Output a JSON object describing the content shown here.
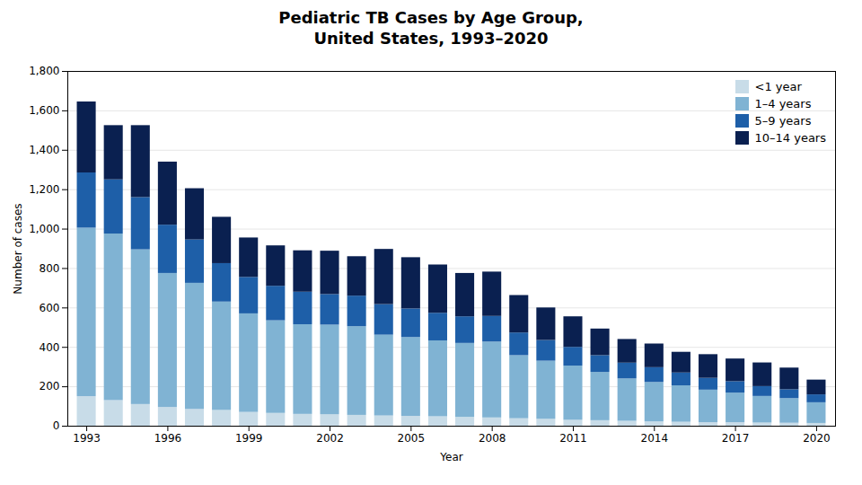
{
  "chart_data": {
    "type": "bar",
    "stacked": true,
    "title": "Pediatric TB Cases by Age Group,\nUnited States, 1993–2020",
    "xlabel": "Year",
    "ylabel": "Number of cases",
    "x": [
      1993,
      1994,
      1995,
      1996,
      1997,
      1998,
      1999,
      2000,
      2001,
      2002,
      2003,
      2004,
      2005,
      2006,
      2007,
      2008,
      2009,
      2010,
      2011,
      2012,
      2013,
      2014,
      2015,
      2016,
      2017,
      2018,
      2019,
      2020
    ],
    "series": [
      {
        "name": "<1 year",
        "color": "#c8dce8",
        "values": [
          150,
          130,
          110,
          95,
          85,
          80,
          70,
          65,
          60,
          58,
          55,
          52,
          50,
          48,
          45,
          42,
          38,
          35,
          30,
          28,
          25,
          22,
          20,
          18,
          18,
          16,
          15,
          14
        ]
      },
      {
        "name": "1–4 years",
        "color": "#80b3d3",
        "values": [
          855,
          845,
          785,
          680,
          640,
          550,
          500,
          470,
          455,
          455,
          450,
          410,
          400,
          385,
          375,
          385,
          320,
          295,
          275,
          245,
          215,
          200,
          185,
          165,
          150,
          135,
          125,
          105
        ]
      },
      {
        "name": "5–9 years",
        "color": "#1e5fa8",
        "values": [
          280,
          275,
          265,
          245,
          220,
          195,
          185,
          175,
          165,
          155,
          155,
          155,
          145,
          140,
          135,
          130,
          115,
          105,
          95,
          85,
          80,
          75,
          65,
          60,
          58,
          50,
          45,
          40
        ]
      },
      {
        "name": "10–14 years",
        "color": "#0a2050",
        "values": [
          360,
          275,
          365,
          320,
          260,
          235,
          200,
          205,
          210,
          220,
          200,
          280,
          260,
          245,
          220,
          225,
          190,
          165,
          155,
          135,
          120,
          120,
          105,
          120,
          115,
          120,
          110,
          75
        ]
      }
    ],
    "xlim": [
      1992.3,
      2020.7
    ],
    "xticks": [
      1993,
      1996,
      1999,
      2002,
      2005,
      2008,
      2011,
      2014,
      2017,
      2020
    ],
    "ylim": [
      0,
      1800
    ],
    "yticks": [
      0,
      200,
      400,
      600,
      800,
      {
        "value": 1000,
        "label": "1,000"
      },
      {
        "value": 1200,
        "label": "1,200"
      },
      {
        "value": 1400,
        "label": "1,400"
      },
      {
        "value": 1600,
        "label": "1,600"
      },
      {
        "value": 1800,
        "label": "1,800"
      }
    ],
    "grid": true,
    "legend": "upper right"
  }
}
